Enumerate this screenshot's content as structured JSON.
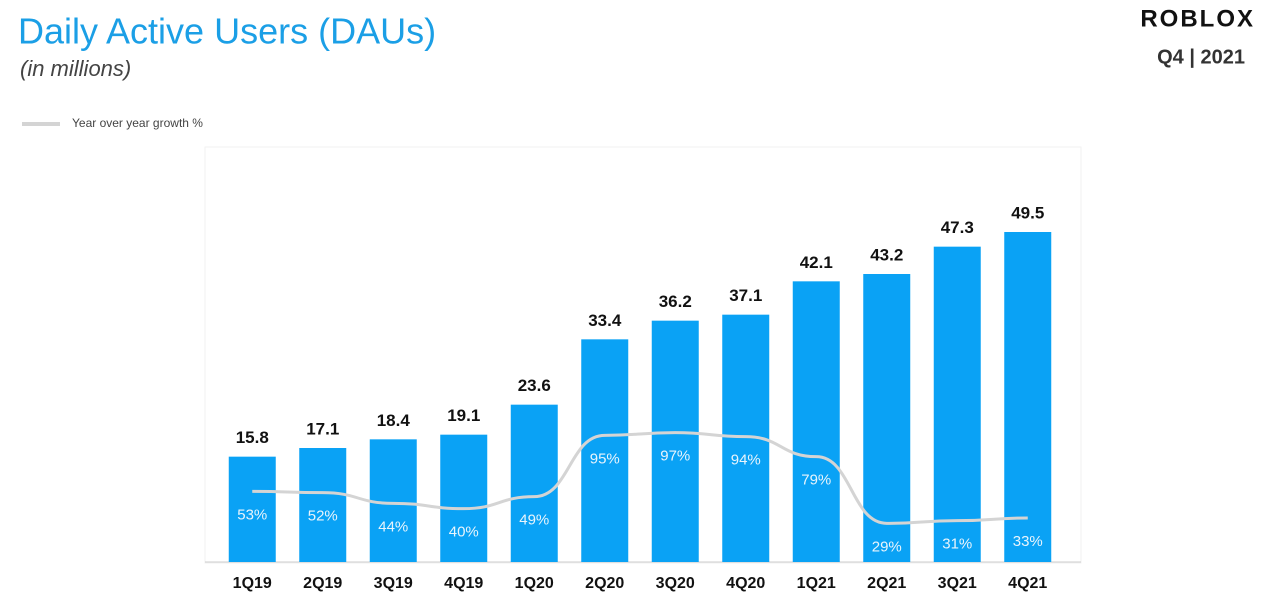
{
  "chart_data": {
    "type": "bar",
    "title": "Daily Active Users (DAUs)",
    "subtitle": "(in millions)",
    "brand": "ROBLOX",
    "period": "Q4 | 2021",
    "categories": [
      "1Q19",
      "2Q19",
      "3Q19",
      "4Q19",
      "1Q20",
      "2Q20",
      "3Q20",
      "4Q20",
      "1Q21",
      "2Q21",
      "3Q21",
      "4Q21"
    ],
    "values": [
      15.8,
      17.1,
      18.4,
      19.1,
      23.6,
      33.4,
      36.2,
      37.1,
      42.1,
      43.2,
      47.3,
      49.5
    ],
    "color": "#0aa2f5",
    "ylim": [
      0,
      60
    ],
    "y2lim": [
      0,
      300
    ],
    "series": [
      {
        "name": "Year over year growth %",
        "color": "#d4d4d4",
        "axis": "y2",
        "type": "line",
        "values": [
          53,
          52,
          44,
          40,
          49,
          95,
          97,
          94,
          79,
          29,
          31,
          33
        ],
        "value_labels": [
          "53%",
          "52%",
          "44%",
          "40%",
          "49%",
          "95%",
          "97%",
          "94%",
          "79%",
          "29%",
          "31%",
          "33%"
        ]
      }
    ],
    "legend": "top-left"
  }
}
